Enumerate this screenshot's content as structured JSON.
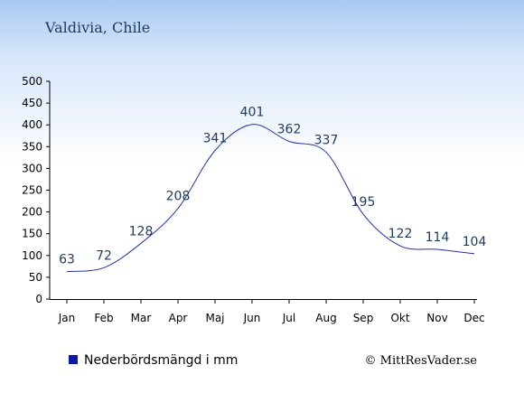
{
  "chart_data": {
    "type": "line",
    "title": "Valdivia, Chile",
    "categories": [
      "Jan",
      "Feb",
      "Mar",
      "Apr",
      "Maj",
      "Jun",
      "Jul",
      "Aug",
      "Sep",
      "Okt",
      "Nov",
      "Dec"
    ],
    "series": [
      {
        "name": "Nederbördsmängd i mm",
        "values": [
          63,
          72,
          128,
          208,
          341,
          401,
          362,
          337,
          195,
          122,
          114,
          104
        ]
      }
    ],
    "data_labels": [
      "63",
      "72",
      "128",
      "208",
      "341",
      "401",
      "362",
      "337",
      "195",
      "122",
      "114",
      "104"
    ],
    "y_ticks": [
      "0",
      "50",
      "100",
      "150",
      "200",
      "250",
      "300",
      "350",
      "400",
      "450",
      "500"
    ],
    "ylim": [
      0,
      500
    ],
    "line_color": "#2233aa",
    "legend_color": "#0a1aa8",
    "legend_position": "bottom-left",
    "grid": false,
    "credit": "© MittResVader.se"
  }
}
